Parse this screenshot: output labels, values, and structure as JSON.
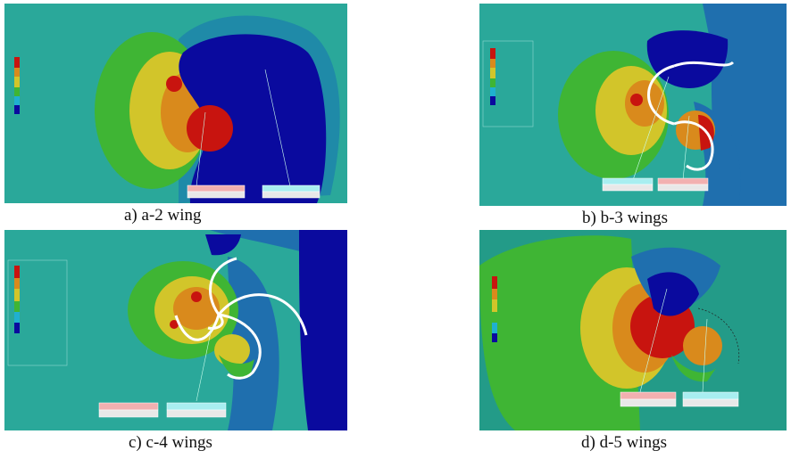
{
  "figure": {
    "panels": [
      {
        "id": "a",
        "caption": "a) a-2 wing",
        "wings": 2
      },
      {
        "id": "b",
        "caption": "b) b-3 wings",
        "wings": 3
      },
      {
        "id": "c",
        "caption": "c) c-4 wings",
        "wings": 4
      },
      {
        "id": "d",
        "caption": "d) d-5 wings",
        "wings": 5
      }
    ],
    "colors": {
      "background_teal": "#2aa89a",
      "pressure_low": "#0a0a9e",
      "pressure_mid_blue": "#1f6fae",
      "pressure_green": "#3fb534",
      "pressure_yellow": "#d2c52a",
      "pressure_orange": "#d98a1c",
      "pressure_high": "#c8140f",
      "blade_outline": "#ffffff",
      "label_pink": "#f2b0b0",
      "label_cyan": "#a8eef0"
    }
  }
}
